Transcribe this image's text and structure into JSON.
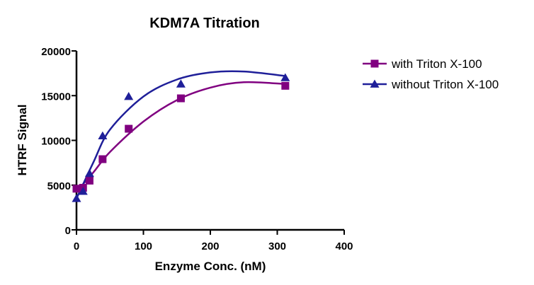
{
  "chart_data": {
    "type": "scatter",
    "title": "KDM7A Titration",
    "xlabel": "Enzyme Conc. (nM)",
    "ylabel": "HTRF Signal",
    "xlim": [
      0,
      400
    ],
    "ylim": [
      0,
      20000
    ],
    "x_ticks": [
      "0",
      "100",
      "200",
      "300",
      "400"
    ],
    "y_ticks": [
      "0",
      "5000",
      "10000",
      "15000",
      "20000"
    ],
    "grid": false,
    "legend_position": "right",
    "series": [
      {
        "name": "with Triton X-100",
        "color": "#800080",
        "marker": "square",
        "points": [
          [
            0,
            4600
          ],
          [
            9.8,
            4700
          ],
          [
            19.5,
            5500
          ],
          [
            39,
            7900
          ],
          [
            78,
            11300
          ],
          [
            156,
            14700
          ],
          [
            312,
            16100
          ]
        ],
        "fit_curve": [
          [
            0,
            4300
          ],
          [
            25,
            6400
          ],
          [
            50,
            8700
          ],
          [
            100,
            12100
          ],
          [
            150,
            14500
          ],
          [
            200,
            15900
          ],
          [
            250,
            16500
          ],
          [
            312,
            16300
          ]
        ]
      },
      {
        "name": "without Triton X-100",
        "color": "#1f1f99",
        "marker": "triangle",
        "points": [
          [
            0,
            3500
          ],
          [
            9.8,
            4300
          ],
          [
            19.5,
            6300
          ],
          [
            39,
            10500
          ],
          [
            78,
            14900
          ],
          [
            156,
            16300
          ],
          [
            312,
            17000
          ]
        ],
        "fit_curve": [
          [
            0,
            3500
          ],
          [
            25,
            7500
          ],
          [
            50,
            11200
          ],
          [
            100,
            14900
          ],
          [
            150,
            16800
          ],
          [
            200,
            17600
          ],
          [
            250,
            17700
          ],
          [
            312,
            17200
          ]
        ]
      }
    ]
  }
}
